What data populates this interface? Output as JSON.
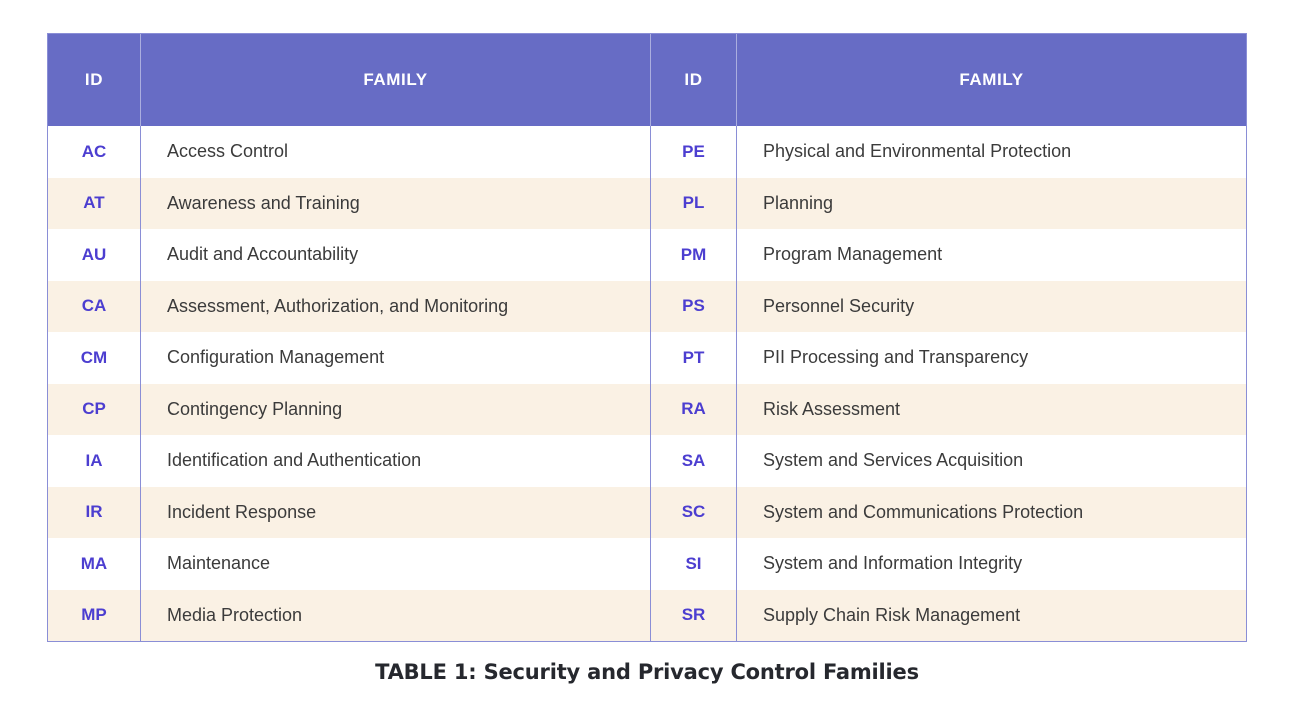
{
  "caption": "TABLE 1: Security and Privacy Control Families",
  "table": {
    "headers": {
      "id_left": "ID",
      "family_left": "FAMILY",
      "id_right": "ID",
      "family_right": "FAMILY"
    },
    "left_rows": [
      {
        "id": "AC",
        "family": "Access Control"
      },
      {
        "id": "AT",
        "family": "Awareness and Training"
      },
      {
        "id": "AU",
        "family": "Audit and Accountability"
      },
      {
        "id": "CA",
        "family": "Assessment, Authorization, and Monitoring"
      },
      {
        "id": "CM",
        "family": "Configuration Management"
      },
      {
        "id": "CP",
        "family": "Contingency Planning"
      },
      {
        "id": "IA",
        "family": "Identification and Authentication"
      },
      {
        "id": "IR",
        "family": "Incident Response"
      },
      {
        "id": "MA",
        "family": "Maintenance"
      },
      {
        "id": "MP",
        "family": "Media Protection"
      }
    ],
    "right_rows": [
      {
        "id": "PE",
        "family": "Physical and Environmental Protection"
      },
      {
        "id": "PL",
        "family": "Planning"
      },
      {
        "id": "PM",
        "family": "Program Management"
      },
      {
        "id": "PS",
        "family": "Personnel Security"
      },
      {
        "id": "PT",
        "family": "PII Processing and Transparency"
      },
      {
        "id": "RA",
        "family": "Risk Assessment"
      },
      {
        "id": "SA",
        "family": "System and Services Acquisition"
      },
      {
        "id": "SC",
        "family": "System and Communications Protection"
      },
      {
        "id": "SI",
        "family": "System and Information Integrity"
      },
      {
        "id": "SR",
        "family": "Supply Chain Risk Management"
      }
    ]
  },
  "colors": {
    "header_bg": "#676CC5",
    "header_text": "#FFFFFF",
    "id_text": "#4C3ED0",
    "row_bg": "#FFFFFF",
    "row_alt_bg": "#FAF1E4",
    "body_text": "#3B3B3B",
    "border": "#8A8ED6",
    "caption_text": "#26282E"
  }
}
